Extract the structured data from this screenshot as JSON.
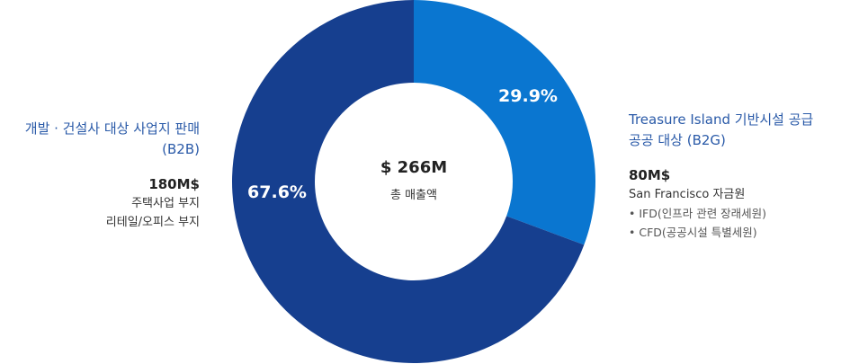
{
  "chart_data": {
    "type": "donut",
    "center": {
      "total": "$ 266M",
      "label": "총 매출액"
    },
    "slices": [
      {
        "label": "Treasure Island 기반시설 공급 공공 대상 (B2G)",
        "value": 29.9,
        "pct_label": "29.9%",
        "color": "#0a76d0"
      },
      {
        "label": "개발·건설사 대상 사업지 판매 (B2B)",
        "value": 67.6,
        "pct_label": "67.6%",
        "color": "#163f8f"
      }
    ]
  },
  "left": {
    "title_line1": "개발 · 건설사 대상 사업지 판매",
    "title_line2": "(B2B)",
    "amount": "180M$",
    "desc": [
      "주택사업 부지",
      "리테일/오피스 부지"
    ]
  },
  "right": {
    "title_line1": "Treasure Island 기반시설 공급",
    "title_line2": "공공 대상 (B2G)",
    "amount": "80M$",
    "desc": "San Francisco 자금원",
    "bullets": [
      "IFD(인프라 관련 장래세원)",
      "CFD(공공시설 특별세원)"
    ]
  }
}
